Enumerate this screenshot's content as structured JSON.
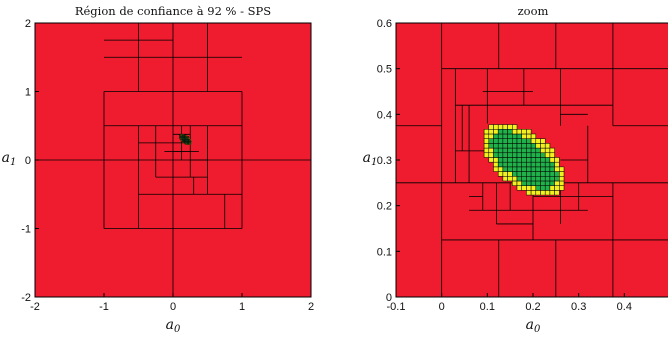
{
  "chart_data": [
    {
      "type": "paving",
      "title": "Région de confiance à 92 % - SPS",
      "xlabel": "a",
      "xlabel_sub": "0",
      "ylabel": "a",
      "ylabel_sub": "1",
      "xlim": [
        -2,
        2
      ],
      "ylim": [
        -2,
        2
      ],
      "xticks": [
        "-2",
        "-1",
        "0",
        "1",
        "2"
      ],
      "yticks": [
        "-2",
        "-1",
        "0",
        "1",
        "2"
      ],
      "colors": {
        "outside": "#ee1c2e",
        "inside": "#1fb14a",
        "boundary": "#f3f01f",
        "edge": "#000000"
      },
      "region": {
        "center": [
          0.18,
          0.3
        ],
        "semi_axes": [
          0.095,
          0.05
        ],
        "angle_deg": -38
      },
      "lines": [
        {
          "x": [
            -2,
            2
          ],
          "y": [
            0,
            0
          ]
        },
        {
          "x": [
            0,
            0
          ],
          "y": [
            -2,
            2
          ]
        },
        {
          "x": [
            -1,
            1
          ],
          "y": [
            1,
            1
          ]
        },
        {
          "x": [
            -1,
            1
          ],
          "y": [
            -1,
            -1
          ]
        },
        {
          "x": [
            -1,
            -1
          ],
          "y": [
            -1,
            1
          ]
        },
        {
          "x": [
            1,
            1
          ],
          "y": [
            -1,
            1
          ]
        },
        {
          "x": [
            -1,
            0
          ],
          "y": [
            1.5,
            1.5
          ]
        },
        {
          "x": [
            -0.5,
            -0.5
          ],
          "y": [
            1,
            2
          ]
        },
        {
          "x": [
            -1,
            0
          ],
          "y": [
            1.75,
            1.75
          ]
        },
        {
          "x": [
            0.5,
            0.5
          ],
          "y": [
            1,
            2
          ]
        },
        {
          "x": [
            0,
            1
          ],
          "y": [
            1.5,
            1.5
          ]
        },
        {
          "x": [
            -0.5,
            0.5
          ],
          "y": [
            0.5,
            0.5
          ]
        },
        {
          "x": [
            -0.5,
            0.5
          ],
          "y": [
            -0.5,
            -0.5
          ]
        },
        {
          "x": [
            -0.5,
            -0.5
          ],
          "y": [
            -0.5,
            0.5
          ]
        },
        {
          "x": [
            0.5,
            0.5
          ],
          "y": [
            -0.5,
            0.5
          ]
        },
        {
          "x": [
            -1,
            -0.5
          ],
          "y": [
            0.5,
            0.5
          ]
        },
        {
          "x": [
            0.5,
            1
          ],
          "y": [
            0.5,
            0.5
          ]
        },
        {
          "x": [
            0.5,
            1
          ],
          "y": [
            -0.5,
            -0.5
          ]
        },
        {
          "x": [
            0.75,
            0.75
          ],
          "y": [
            -0.5,
            -1
          ]
        },
        {
          "x": [
            -0.5,
            -0.5
          ],
          "y": [
            -0.5,
            -1
          ]
        },
        {
          "x": [
            -0.25,
            0.25
          ],
          "y": [
            0.25,
            0.25
          ]
        },
        {
          "x": [
            -0.25,
            0.25
          ],
          "y": [
            -0.25,
            -0.25
          ]
        },
        {
          "x": [
            -0.25,
            -0.25
          ],
          "y": [
            -0.25,
            0.5
          ]
        },
        {
          "x": [
            0.25,
            0.25
          ],
          "y": [
            -0.25,
            0.5
          ]
        },
        {
          "x": [
            0.25,
            0.5
          ],
          "y": [
            0,
            0
          ]
        },
        {
          "x": [
            -0.5,
            -0.25
          ],
          "y": [
            0.25,
            0.25
          ]
        },
        {
          "x": [
            0.25,
            0.5
          ],
          "y": [
            -0.25,
            -0.25
          ]
        },
        {
          "x": [
            0.3,
            0.3
          ],
          "y": [
            -0.25,
            -0.5
          ]
        },
        {
          "x": [
            0,
            0.25
          ],
          "y": [
            0.125,
            0.125
          ]
        },
        {
          "x": [
            0,
            0.25
          ],
          "y": [
            0.375,
            0.375
          ]
        },
        {
          "x": [
            0.125,
            0.125
          ],
          "y": [
            0,
            0.5
          ]
        },
        {
          "x": [
            0.25,
            0.375
          ],
          "y": [
            0.125,
            0.125
          ]
        },
        {
          "x": [
            -0.125,
            0
          ],
          "y": [
            0.125,
            0.125
          ]
        }
      ]
    },
    {
      "type": "paving",
      "title": "zoom",
      "xlabel": "a",
      "xlabel_sub": "0",
      "ylabel": "a",
      "ylabel_sub": "1",
      "xlim": [
        -0.1,
        0.5
      ],
      "ylim": [
        0,
        0.6
      ],
      "xticks": [
        "-0.1",
        "0",
        "0.1",
        "0.2",
        "0.3",
        "0.4"
      ],
      "yticks": [
        "0",
        "0.1",
        "0.2",
        "0.3",
        "0.4",
        "0.5",
        "0.6"
      ],
      "colors": {
        "outside": "#ee1c2e",
        "inside": "#1fb14a",
        "boundary": "#f3f01f",
        "edge": "#000000"
      },
      "region": {
        "center": [
          0.18,
          0.3
        ],
        "semi_axes": [
          0.095,
          0.05
        ],
        "angle_deg": -38
      },
      "lines": [
        {
          "x": [
            0,
            0.5
          ],
          "y": [
            0.5,
            0.5
          ]
        },
        {
          "x": [
            0,
            0
          ],
          "y": [
            0,
            0.6
          ]
        },
        {
          "x": [
            -0.1,
            0.5
          ],
          "y": [
            0.25,
            0.25
          ]
        },
        {
          "x": [
            -0.1,
            0
          ],
          "y": [
            0.375,
            0.375
          ]
        },
        {
          "x": [
            0,
            0.5
          ],
          "y": [
            0.125,
            0.125
          ]
        },
        {
          "x": [
            0.125,
            0.125
          ],
          "y": [
            0,
            0.125
          ]
        },
        {
          "x": [
            0.25,
            0.25
          ],
          "y": [
            0,
            0.125
          ]
        },
        {
          "x": [
            0.375,
            0.375
          ],
          "y": [
            0,
            0.25
          ]
        },
        {
          "x": [
            0.125,
            0.125
          ],
          "y": [
            0.5,
            0.6
          ]
        },
        {
          "x": [
            0.25,
            0.25
          ],
          "y": [
            0.5,
            0.6
          ]
        },
        {
          "x": [
            0.375,
            0.375
          ],
          "y": [
            0.375,
            0.6
          ]
        },
        {
          "x": [
            0.375,
            0.5
          ],
          "y": [
            0.375,
            0.375
          ]
        },
        {
          "x": [
            0.03,
            0.03
          ],
          "y": [
            0.25,
            0.5
          ]
        },
        {
          "x": [
            0.32,
            0.32
          ],
          "y": [
            0.25,
            0.375
          ]
        },
        {
          "x": [
            0.06,
            0.32
          ],
          "y": [
            0.19,
            0.19
          ]
        },
        {
          "x": [
            0.03,
            0.375
          ],
          "y": [
            0.42,
            0.42
          ]
        },
        {
          "x": [
            0.2,
            0.375
          ],
          "y": [
            0.22,
            0.22
          ]
        },
        {
          "x": [
            0.03,
            0.125
          ],
          "y": [
            0.32,
            0.32
          ]
        },
        {
          "x": [
            0.09,
            0.09
          ],
          "y": [
            0.19,
            0.25
          ]
        },
        {
          "x": [
            0.15,
            0.15
          ],
          "y": [
            0.19,
            0.25
          ]
        },
        {
          "x": [
            0.2,
            0.2
          ],
          "y": [
            0.125,
            0.25
          ]
        },
        {
          "x": [
            0.26,
            0.26
          ],
          "y": [
            0.16,
            0.25
          ]
        },
        {
          "x": [
            0.06,
            0.06
          ],
          "y": [
            0.25,
            0.42
          ]
        },
        {
          "x": [
            0.1,
            0.1
          ],
          "y": [
            0.38,
            0.5
          ]
        },
        {
          "x": [
            0.18,
            0.18
          ],
          "y": [
            0.42,
            0.5
          ]
        },
        {
          "x": [
            0.26,
            0.26
          ],
          "y": [
            0.375,
            0.5
          ]
        },
        {
          "x": [
            0.3,
            0.3
          ],
          "y": [
            0.19,
            0.25
          ]
        },
        {
          "x": [
            0.06,
            0.09
          ],
          "y": [
            0.22,
            0.22
          ]
        },
        {
          "x": [
            0.26,
            0.32
          ],
          "y": [
            0.4,
            0.4
          ]
        },
        {
          "x": [
            0.26,
            0.32
          ],
          "y": [
            0.3,
            0.3
          ]
        },
        {
          "x": [
            0.045,
            0.045
          ],
          "y": [
            0.32,
            0.42
          ]
        },
        {
          "x": [
            0.09,
            0.2
          ],
          "y": [
            0.45,
            0.45
          ]
        },
        {
          "x": [
            0.12,
            0.12
          ],
          "y": [
            0.16,
            0.25
          ]
        },
        {
          "x": [
            0.12,
            0.2
          ],
          "y": [
            0.16,
            0.16
          ]
        }
      ]
    }
  ]
}
